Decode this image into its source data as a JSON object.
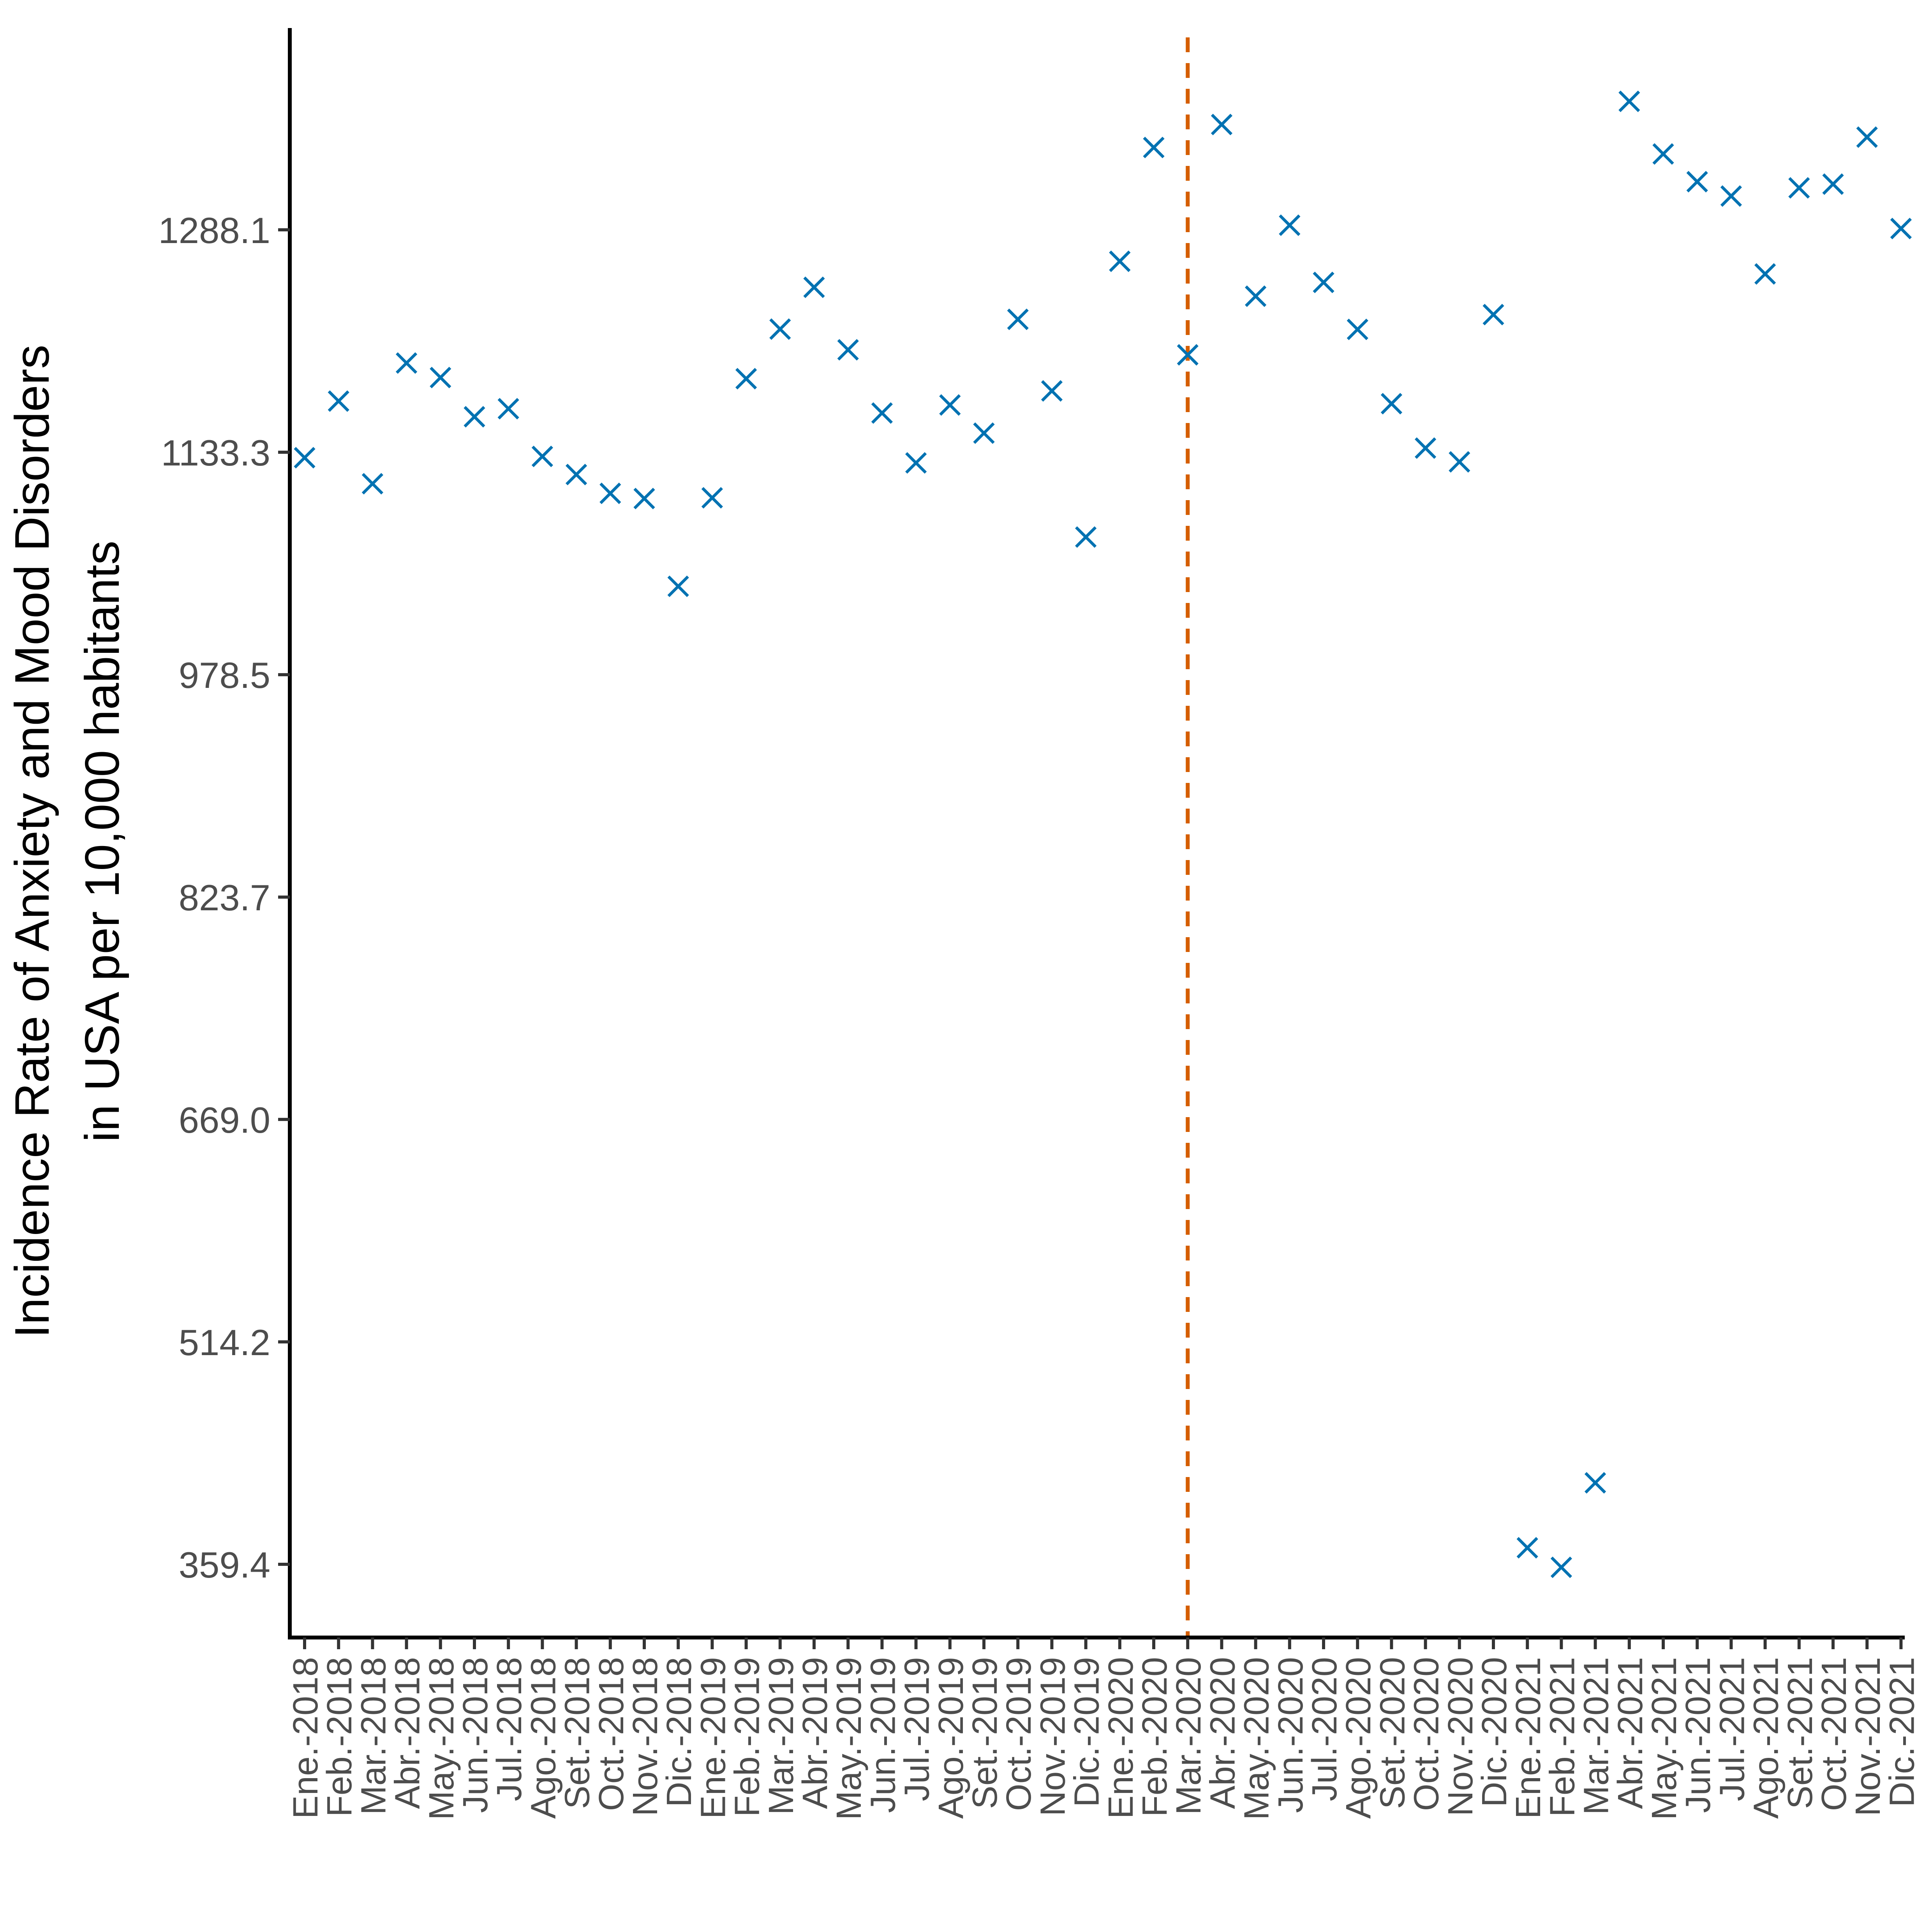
{
  "chart_data": {
    "type": "scatter",
    "title": "",
    "xlabel": "",
    "ylabel_lines": [
      "Incidence Rate of  Anxiety and Mood Disorders",
      "in  USA  per 10,000 habitants"
    ],
    "y_ticks": [
      359.4,
      514.2,
      669.0,
      823.7,
      978.5,
      1133.3,
      1288.1
    ],
    "ylim": [
      310,
      1450
    ],
    "categories": [
      "Ene.-2018",
      "Feb.-2018",
      "Mar.-2018",
      "Abr.-2018",
      "May.-2018",
      "Jun.-2018",
      "Jul.-2018",
      "Ago.-2018",
      "Set.-2018",
      "Oct.-2018",
      "Nov.-2018",
      "Dic.-2018",
      "Ene.-2019",
      "Feb.-2019",
      "Mar.-2019",
      "Abr.-2019",
      "May.-2019",
      "Jun.-2019",
      "Jul.-2019",
      "Ago.-2019",
      "Set.-2019",
      "Oct.-2019",
      "Nov.-2019",
      "Dic.-2019",
      "Ene.-2020",
      "Feb.-2020",
      "Mar.-2020",
      "Abr.-2020",
      "May.-2020",
      "Jun.-2020",
      "Jul.-2020",
      "Ago.-2020",
      "Set.-2020",
      "Oct.-2020",
      "Nov.-2020",
      "Dic.-2020",
      "Ene.-2021",
      "Feb.-2021",
      "Mar.-2021",
      "Abr.-2021",
      "May.-2021",
      "Jun.-2021",
      "Jul.-2021",
      "Ago.-2021",
      "Set.-2021",
      "Oct.-2021",
      "Nov.-2021",
      "Dic.-2021"
    ],
    "values": [
      1129.5,
      1168.9,
      1111.4,
      1195.4,
      1185.3,
      1158.0,
      1163.6,
      1130.4,
      1117.8,
      1104.7,
      1101.1,
      1040.0,
      1101.6,
      1184.5,
      1219.0,
      1248.1,
      1204.6,
      1160.6,
      1125.9,
      1166.2,
      1146.6,
      1225.8,
      1176.0,
      1074.3,
      1266.2,
      1345.4,
      1201.1,
      1361.4,
      1241.9,
      1291.3,
      1251.5,
      1218.8,
      1167.1,
      1136.2,
      1126.6,
      1229.1,
      370.9,
      357.3,
      416.1,
      1377.5,
      1340.9,
      1321.6,
      1311.6,
      1257.4,
      1317.3,
      1319.9,
      1352.6,
      1289.0
    ],
    "marker": "x",
    "point_color": "#0072B2",
    "reference_line": {
      "category": "Mar.-2020",
      "style": "dashed",
      "color": "#D55E00"
    },
    "grid": false,
    "legend": "none"
  }
}
